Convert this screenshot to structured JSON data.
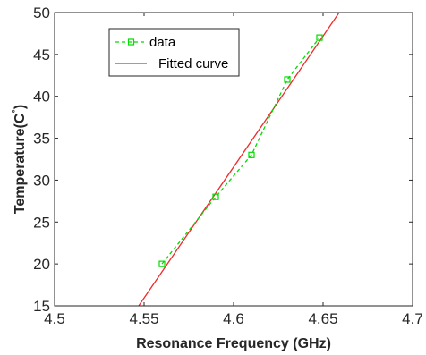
{
  "chart_data": {
    "type": "line",
    "xlabel": "Resonance Frequency (GHz)",
    "ylabel": "Temperature(C",
    "ylabel_superscript": "°",
    "ylabel_suffix": ")",
    "xlim": [
      4.5,
      4.7
    ],
    "ylim": [
      15,
      50
    ],
    "x_ticks": [
      4.5,
      4.55,
      4.6,
      4.65,
      4.7
    ],
    "x_tick_labels": [
      "4.5",
      "4.55",
      "4.6",
      "4.65",
      "4.7"
    ],
    "y_ticks": [
      15,
      20,
      25,
      30,
      35,
      40,
      45,
      50
    ],
    "y_tick_labels": [
      "15",
      "20",
      "25",
      "30",
      "35",
      "40",
      "45",
      "50"
    ],
    "grid": false,
    "legend_position": "top-left",
    "series": [
      {
        "name": "data",
        "style": "dashed-square-markers",
        "color": "#00dd00",
        "x": [
          4.56,
          4.59,
          4.61,
          4.63,
          4.648
        ],
        "y": [
          20,
          28,
          33,
          42,
          47
        ]
      },
      {
        "name": "Fitted curve",
        "style": "solid",
        "color": "#ee2a2a",
        "x": [
          4.547,
          4.659
        ],
        "y": [
          15,
          50
        ]
      }
    ]
  }
}
